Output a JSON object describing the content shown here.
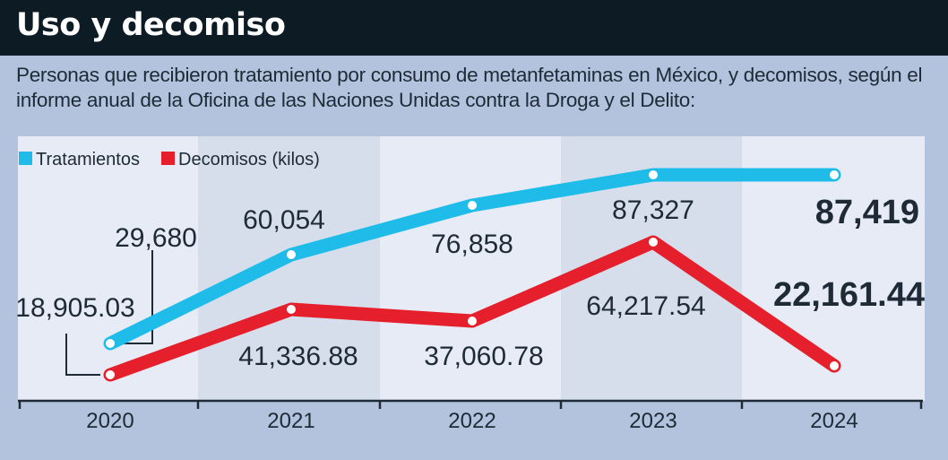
{
  "header": {
    "title": "Uso y decomiso",
    "subtitle": "Personas que recibieron tratamiento por consumo de metanfetaminas en México, y decomisos, según el informe anual de la Oficina de las Naciones Unidas contra la Droga y el Delito:"
  },
  "colors": {
    "header_bg": "#0d1b25",
    "page_bg": "#b3c3de",
    "plot_band_light": "#e6ebf5",
    "plot_band_dark": "#d6deec",
    "tratamientos": "#1fbcea",
    "decomisos": "#e5202c",
    "text": "#1e2b36"
  },
  "chart_data": {
    "type": "line",
    "title": "Uso y decomiso",
    "xlabel": "",
    "ylabel": "",
    "categories": [
      "2020",
      "2021",
      "2022",
      "2023",
      "2024"
    ],
    "grid": false,
    "legend_position": "top-left",
    "series": [
      {
        "name": "Tratamientos",
        "values": [
          18905.03,
          60054,
          76858,
          87327,
          87419
        ],
        "labels": [
          "18,905.03",
          "60,054",
          "76,858",
          "87,327",
          "87,419"
        ]
      },
      {
        "name": "Decomisos (kilos)",
        "values": [
          29680,
          41336.88,
          37060.78,
          64217.54,
          22161.44
        ],
        "labels": [
          "29,680",
          "41,336.88",
          "37,060.78",
          "64,217.54",
          "22,161.44"
        ]
      }
    ]
  }
}
